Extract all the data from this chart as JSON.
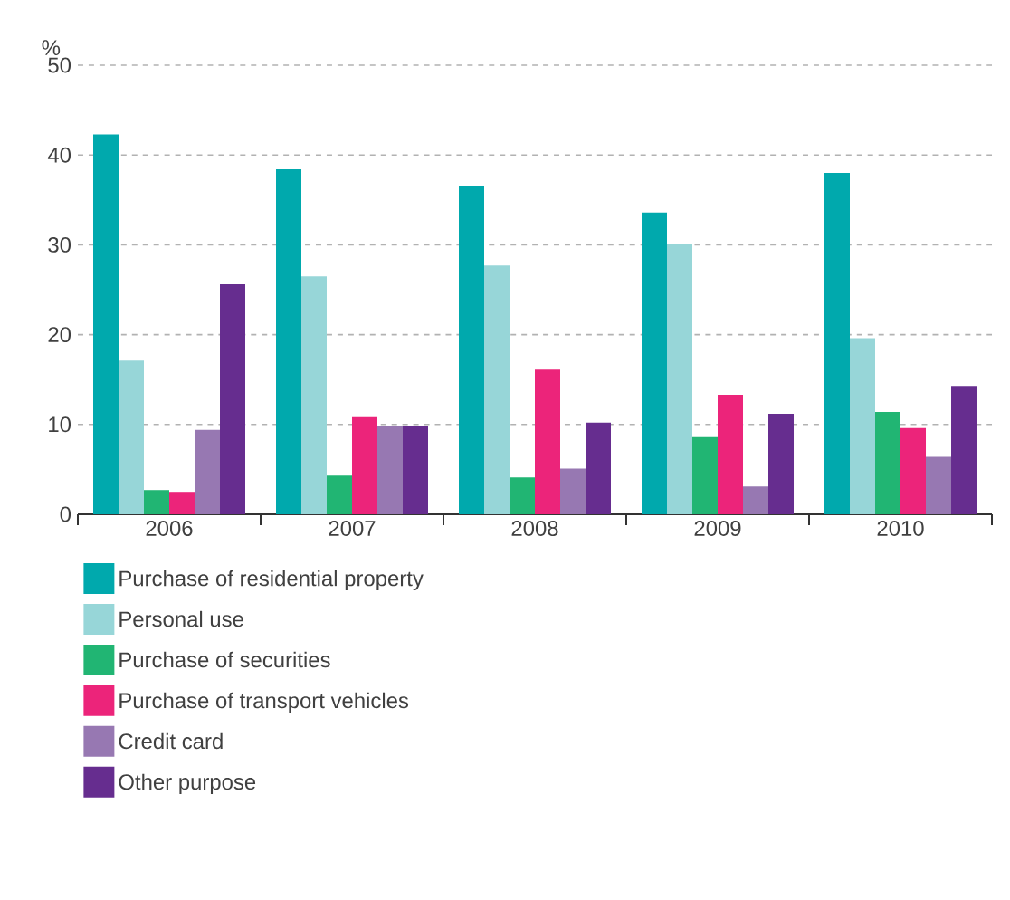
{
  "chart_data": {
    "type": "bar",
    "ylabel": "%",
    "categories": [
      "2006",
      "2007",
      "2008",
      "2009",
      "2010"
    ],
    "series": [
      {
        "name": "Purchase of residential property",
        "color": "#00a9ad",
        "values": [
          42.3,
          38.4,
          36.6,
          33.6,
          38.0
        ]
      },
      {
        "name": "Personal use",
        "color": "#97d6d8",
        "values": [
          17.1,
          26.5,
          27.7,
          30.1,
          19.6
        ]
      },
      {
        "name": "Purchase of securities",
        "color": "#21b573",
        "values": [
          2.7,
          4.3,
          4.1,
          8.6,
          11.4
        ]
      },
      {
        "name": "Purchase of transport vehicles",
        "color": "#ec247a",
        "values": [
          2.5,
          10.8,
          16.1,
          13.3,
          9.6
        ]
      },
      {
        "name": "Credit card",
        "color": "#9778b2",
        "values": [
          9.4,
          9.8,
          5.1,
          3.1,
          6.4
        ]
      },
      {
        "name": "Other purpose",
        "color": "#662d8f",
        "values": [
          25.6,
          9.8,
          10.2,
          11.2,
          14.3
        ]
      }
    ],
    "ylim": [
      0,
      50
    ],
    "yticks": [
      0,
      10,
      20,
      30,
      40,
      50
    ],
    "grid": "y",
    "legend": "bottom"
  }
}
